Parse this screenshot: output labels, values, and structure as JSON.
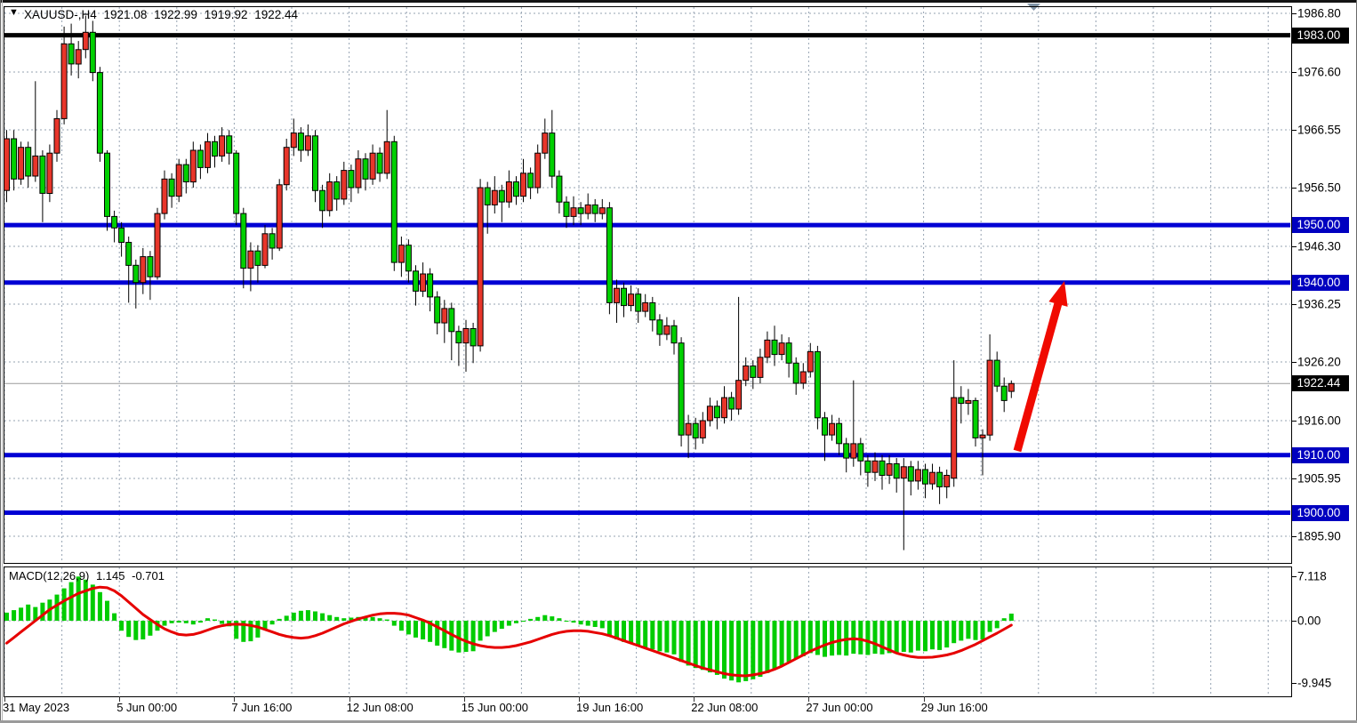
{
  "window": {
    "title": {
      "dropdown_icon": "symbol-dropdown-triangle",
      "symbol_period": "XAUUSD-,H4",
      "open": "1921.08",
      "high": "1922.99",
      "low": "1919.92",
      "close": "1922.44"
    }
  },
  "colors": {
    "background": "#ffffff",
    "grid": "#96a3b2",
    "bull_candle": "#e8352a",
    "bear_candle": "#00d000",
    "candle_outline": "#000000",
    "hline_blue": "#0000d4",
    "hline_black": "#000000",
    "badge_blue": "#0000c0",
    "badge_black": "#000000",
    "current_price_line": "#9a9a9a",
    "macd_histogram": "#00cc00",
    "macd_signal": "#e60000",
    "arrow_red": "#f00a00",
    "scroll_marker": "#8094a6"
  },
  "price_axis": {
    "ticks": [
      {
        "label": "1986.80",
        "value": 1986.8
      },
      {
        "label": "1976.60",
        "value": 1976.6
      },
      {
        "label": "1966.55",
        "value": 1966.55
      },
      {
        "label": "1956.50",
        "value": 1956.5
      },
      {
        "label": "1946.30",
        "value": 1946.3
      },
      {
        "label": "1936.25",
        "value": 1936.25
      },
      {
        "label": "1926.20",
        "value": 1926.2
      },
      {
        "label": "1916.00",
        "value": 1916.0
      },
      {
        "label": "1905.95",
        "value": 1905.95
      },
      {
        "label": "1895.90",
        "value": 1895.9
      }
    ],
    "badges": [
      {
        "label": "1983.00",
        "value": 1983.0,
        "style": "black"
      },
      {
        "label": "1950.00",
        "value": 1950.0,
        "style": "blue"
      },
      {
        "label": "1940.00",
        "value": 1940.0,
        "style": "blue"
      },
      {
        "label": "1922.44",
        "value": 1922.44,
        "style": "black"
      },
      {
        "label": "1910.00",
        "value": 1910.0,
        "style": "blue"
      },
      {
        "label": "1900.00",
        "value": 1900.0,
        "style": "blue"
      }
    ]
  },
  "time_axis": {
    "labels": [
      {
        "text": "31 May 2023",
        "grid": 0,
        "align": "left"
      },
      {
        "text": "5 Jun 00:00",
        "grid": 2
      },
      {
        "text": "7 Jun 16:00",
        "grid": 4
      },
      {
        "text": "12 Jun 08:00",
        "grid": 6
      },
      {
        "text": "15 Jun 00:00",
        "grid": 8
      },
      {
        "text": "19 Jun 16:00",
        "grid": 10
      },
      {
        "text": "22 Jun 08:00",
        "grid": 12
      },
      {
        "text": "27 Jun 00:00",
        "grid": 14
      },
      {
        "text": "29 Jun 16:00",
        "grid": 16
      }
    ]
  },
  "macd_panel": {
    "label": "MACD(12,26,9)",
    "value_main": "1.145",
    "value_signal": "-0.701",
    "scale_labels": [
      {
        "label": "7.118",
        "value": 7.118
      },
      {
        "label": "0.00",
        "value": 0
      },
      {
        "label": "-9.945",
        "value": -9.945
      }
    ]
  },
  "chart_data": {
    "type": "candlestick",
    "symbol": "XAUUSD-",
    "timeframe": "H4",
    "title": "XAUUSD-,H4 1921.08 1922.99 1919.92 1922.44",
    "bull_color_is_red": true,
    "ohlc_current": {
      "open": 1921.08,
      "high": 1922.99,
      "low": 1919.92,
      "close": 1922.44
    },
    "y_range": [
      1891.5,
      1987.9
    ],
    "horizontal_lines": [
      {
        "price": 1983.0,
        "color": "black"
      },
      {
        "price": 1950.0,
        "color": "blue"
      },
      {
        "price": 1940.0,
        "color": "blue"
      },
      {
        "price": 1910.0,
        "color": "blue"
      },
      {
        "price": 1900.0,
        "color": "blue"
      }
    ],
    "current_price_line": 1922.44,
    "annotation_arrow": {
      "from_price": 1910.2,
      "to_price": 1939.3,
      "direction": "up-right"
    },
    "candles": [
      [
        1956,
        1966.5,
        1954,
        1965
      ],
      [
        1965,
        1966.5,
        1956,
        1958
      ],
      [
        1958,
        1964.5,
        1957,
        1963.5
      ],
      [
        1963.5,
        1964.5,
        1956.5,
        1958.5
      ],
      [
        1958.5,
        1975,
        1957.5,
        1962
      ],
      [
        1962,
        1963,
        1950.5,
        1955.5
      ],
      [
        1955.5,
        1964,
        1954,
        1962.5
      ],
      [
        1962.5,
        1970,
        1961,
        1968.5
      ],
      [
        1968.5,
        1984.5,
        1967.5,
        1981.5
      ],
      [
        1981.5,
        1985,
        1976,
        1978
      ],
      [
        1978,
        1982,
        1975.5,
        1980.5
      ],
      [
        1980.5,
        1986.4,
        1979,
        1983.5
      ],
      [
        1983.5,
        1985.5,
        1975,
        1976.5
      ],
      [
        1976.5,
        1977.5,
        1961,
        1962.5
      ],
      [
        1962.5,
        1963,
        1949,
        1951.5
      ],
      [
        1951.5,
        1952.5,
        1947,
        1949.5
      ],
      [
        1949.5,
        1950.5,
        1944.5,
        1947
      ],
      [
        1947,
        1948,
        1936.5,
        1943
      ],
      [
        1943,
        1944,
        1935.5,
        1940
      ],
      [
        1940,
        1946,
        1938,
        1944.5
      ],
      [
        1944.5,
        1945.5,
        1937,
        1941
      ],
      [
        1941,
        1953,
        1940.5,
        1952
      ],
      [
        1952,
        1959.5,
        1951,
        1958
      ],
      [
        1958,
        1959,
        1953,
        1955
      ],
      [
        1955,
        1961.5,
        1954,
        1960.5
      ],
      [
        1960.5,
        1961.5,
        1955.5,
        1957.5
      ],
      [
        1957.5,
        1964.5,
        1956.5,
        1963
      ],
      [
        1963,
        1964,
        1958,
        1960
      ],
      [
        1960,
        1966,
        1959,
        1964.5
      ],
      [
        1964.5,
        1965.5,
        1960,
        1962
      ],
      [
        1962,
        1967,
        1961,
        1965.5
      ],
      [
        1965.5,
        1966.5,
        1960.5,
        1962.5
      ],
      [
        1962.5,
        1963,
        1950,
        1952
      ],
      [
        1952,
        1953,
        1939,
        1942.5
      ],
      [
        1942.5,
        1947,
        1938.5,
        1945.5
      ],
      [
        1945.5,
        1946.5,
        1940,
        1943
      ],
      [
        1943,
        1950,
        1942.5,
        1948.5
      ],
      [
        1948.5,
        1949.5,
        1944,
        1946
      ],
      [
        1946,
        1958,
        1945.5,
        1957
      ],
      [
        1957,
        1965,
        1956,
        1963.5
      ],
      [
        1963.5,
        1968.5,
        1962,
        1966
      ],
      [
        1966,
        1967,
        1961,
        1963
      ],
      [
        1963,
        1967.5,
        1962,
        1965.5
      ],
      [
        1965.5,
        1966.5,
        1954,
        1956
      ],
      [
        1956,
        1957,
        1949.5,
        1952.5
      ],
      [
        1952.5,
        1959,
        1951.5,
        1957.5
      ],
      [
        1957.5,
        1958.5,
        1952.5,
        1954.5
      ],
      [
        1954.5,
        1961,
        1953.5,
        1959.5
      ],
      [
        1959.5,
        1960.5,
        1954,
        1956.5
      ],
      [
        1956.5,
        1963,
        1955.5,
        1961.5
      ],
      [
        1961.5,
        1962.5,
        1956,
        1958
      ],
      [
        1958,
        1964,
        1957,
        1962.5
      ],
      [
        1962.5,
        1963.5,
        1957.5,
        1959
      ],
      [
        1959,
        1970,
        1958,
        1964.5
      ],
      [
        1964.5,
        1965.5,
        1942,
        1943.5
      ],
      [
        1943.5,
        1948,
        1941,
        1946.5
      ],
      [
        1946.5,
        1947.5,
        1940,
        1942
      ],
      [
        1942,
        1943,
        1936,
        1938.5
      ],
      [
        1938.5,
        1943.5,
        1937.5,
        1941.5
      ],
      [
        1941.5,
        1942.5,
        1935,
        1937.5
      ],
      [
        1937.5,
        1938.5,
        1931,
        1933
      ],
      [
        1933,
        1937,
        1929.5,
        1935.5
      ],
      [
        1935.5,
        1936.5,
        1926.5,
        1931.5
      ],
      [
        1931.5,
        1932.5,
        1925.5,
        1929.5
      ],
      [
        1929.5,
        1933.5,
        1924.5,
        1932
      ],
      [
        1932,
        1933,
        1926,
        1929
      ],
      [
        1929,
        1958,
        1928,
        1956.5
      ],
      [
        1956.5,
        1957.5,
        1948.5,
        1953.5
      ],
      [
        1953.5,
        1958.5,
        1952,
        1956
      ],
      [
        1956,
        1957,
        1950.5,
        1954
      ],
      [
        1954,
        1959.5,
        1953,
        1957.5
      ],
      [
        1957.5,
        1958.5,
        1953.5,
        1955
      ],
      [
        1955,
        1961.5,
        1954,
        1959
      ],
      [
        1959,
        1960,
        1954.5,
        1956.5
      ],
      [
        1956.5,
        1964,
        1955.5,
        1962.5
      ],
      [
        1962.5,
        1968.5,
        1961.5,
        1966
      ],
      [
        1966,
        1970,
        1956.5,
        1958.5
      ],
      [
        1958.5,
        1959.5,
        1952,
        1954
      ],
      [
        1954,
        1955,
        1949.5,
        1951.5
      ],
      [
        1951.5,
        1955,
        1950,
        1953
      ],
      [
        1953,
        1954,
        1950,
        1952
      ],
      [
        1952,
        1955.5,
        1951,
        1953.5
      ],
      [
        1953.5,
        1954.5,
        1950.5,
        1952
      ],
      [
        1952,
        1954.5,
        1951,
        1953
      ],
      [
        1953,
        1954,
        1934.5,
        1936.5
      ],
      [
        1936.5,
        1940.5,
        1933,
        1939
      ],
      [
        1939,
        1940,
        1934,
        1936
      ],
      [
        1936,
        1939.5,
        1935,
        1938
      ],
      [
        1938,
        1939,
        1933,
        1935
      ],
      [
        1935,
        1938,
        1934,
        1936.5
      ],
      [
        1936.5,
        1937.5,
        1931.5,
        1933.5
      ],
      [
        1933.5,
        1934.5,
        1929,
        1931
      ],
      [
        1931,
        1934,
        1930,
        1932.5
      ],
      [
        1932.5,
        1933.5,
        1927.5,
        1929.5
      ],
      [
        1929.5,
        1930.5,
        1911.5,
        1913.5
      ],
      [
        1913.5,
        1917,
        1909.5,
        1915.5
      ],
      [
        1915.5,
        1916.5,
        1911,
        1913
      ],
      [
        1913,
        1917.5,
        1912,
        1916
      ],
      [
        1916,
        1920,
        1915,
        1918.5
      ],
      [
        1918.5,
        1919.5,
        1914.5,
        1916.5
      ],
      [
        1916.5,
        1922,
        1915.5,
        1920
      ],
      [
        1920,
        1921,
        1916,
        1918
      ],
      [
        1918,
        1937.5,
        1917,
        1923
      ],
      [
        1923,
        1927,
        1922,
        1925.5
      ],
      [
        1925.5,
        1926.5,
        1921.5,
        1923.5
      ],
      [
        1923.5,
        1928.5,
        1922.5,
        1927
      ],
      [
        1927,
        1931.5,
        1926,
        1930
      ],
      [
        1930,
        1932.5,
        1925.5,
        1927.5
      ],
      [
        1927.5,
        1931,
        1926.5,
        1929.5
      ],
      [
        1929.5,
        1930.5,
        1923.5,
        1926
      ],
      [
        1926,
        1927,
        1920.5,
        1922.5
      ],
      [
        1922.5,
        1926,
        1921.5,
        1924.5
      ],
      [
        1924.5,
        1929.5,
        1923.5,
        1928
      ],
      [
        1928,
        1929,
        1914.5,
        1916.5
      ],
      [
        1916.5,
        1917.5,
        1909,
        1913.5
      ],
      [
        1913.5,
        1917,
        1912.5,
        1915.5
      ],
      [
        1915.5,
        1916.5,
        1910,
        1912
      ],
      [
        1912,
        1913,
        1907,
        1909.5
      ],
      [
        1909.5,
        1923,
        1908,
        1912
      ],
      [
        1912,
        1913,
        1906.5,
        1909
      ],
      [
        1909,
        1910,
        1904.5,
        1907
      ],
      [
        1907,
        1910.5,
        1905.5,
        1909
      ],
      [
        1909,
        1910,
        1904,
        1906.5
      ],
      [
        1906.5,
        1910,
        1905,
        1908.5
      ],
      [
        1908.5,
        1909.5,
        1903.5,
        1906
      ],
      [
        1906,
        1909.5,
        1893.5,
        1908
      ],
      [
        1908,
        1909,
        1903,
        1905.5
      ],
      [
        1905.5,
        1909,
        1904,
        1907.5
      ],
      [
        1907.5,
        1908.5,
        1902.5,
        1905
      ],
      [
        1905,
        1908.5,
        1904,
        1907
      ],
      [
        1907,
        1908,
        1901.5,
        1904.5
      ],
      [
        1904.5,
        1907.5,
        1902.5,
        1906.5
      ],
      [
        1906,
        1926.5,
        1904.5,
        1920
      ],
      [
        1920,
        1922,
        1915.5,
        1919
      ],
      [
        1919,
        1921.5,
        1917,
        1919.5
      ],
      [
        1919.5,
        1920,
        1911.5,
        1913
      ],
      [
        1913,
        1914.5,
        1906.5,
        1913.5
      ],
      [
        1913.5,
        1931,
        1912.5,
        1926.5
      ],
      [
        1926.5,
        1928,
        1921,
        1922
      ],
      [
        1922,
        1923.5,
        1917.5,
        1919.5
      ],
      [
        1921.08,
        1922.99,
        1919.92,
        1922.44
      ]
    ],
    "macd": {
      "parameters": "12,26,9",
      "main_value": 1.145,
      "signal_value": -0.701,
      "scale_max": 7.118,
      "scale_min": -9.945,
      "histogram": [
        1.3,
        1.7,
        2.1,
        2.6,
        2.2,
        2.9,
        3.4,
        4.2,
        5.2,
        6.2,
        7.1,
        6.6,
        5.8,
        4.6,
        3.2,
        1.2,
        -1.6,
        -2.6,
        -3.1,
        -3.0,
        -2.4,
        -1.6,
        -0.8,
        -0.4,
        -0.3,
        -0.4,
        -0.6,
        -0.3,
        0.4,
        0.2,
        -0.5,
        -0.9,
        -2.9,
        -3.4,
        -3.3,
        -2.7,
        -1.3,
        -0.6,
        0.3,
        0.8,
        1.3,
        1.6,
        1.7,
        1.5,
        1.2,
        0.9,
        0.6,
        0.4,
        0.5,
        0.6,
        0.7,
        0.6,
        0.4,
        0.2,
        -0.8,
        -1.6,
        -2.2,
        -2.7,
        -3.0,
        -3.4,
        -4.0,
        -4.4,
        -4.8,
        -5.1,
        -5.0,
        -4.9,
        -3.2,
        -2.5,
        -1.8,
        -1.3,
        -0.8,
        -0.4,
        0.0,
        0.3,
        0.6,
        0.9,
        0.7,
        0.4,
        0.0,
        -0.3,
        -0.6,
        -0.8,
        -1.0,
        -1.2,
        -2.4,
        -3.0,
        -3.4,
        -3.7,
        -4.1,
        -4.3,
        -4.6,
        -4.9,
        -5.1,
        -5.4,
        -6.6,
        -7.2,
        -7.6,
        -7.9,
        -8.3,
        -8.7,
        -9.3,
        -9.6,
        -9.9,
        -9.7,
        -9.4,
        -9.0,
        -8.4,
        -7.8,
        -7.2,
        -6.6,
        -6.1,
        -5.7,
        -5.2,
        -5.5,
        -5.8,
        -5.6,
        -5.5,
        -5.6,
        -5.3,
        -5.4,
        -5.5,
        -5.3,
        -5.4,
        -5.2,
        -5.3,
        -5.0,
        -5.1,
        -4.8,
        -4.9,
        -4.6,
        -4.7,
        -4.3,
        -3.6,
        -3.2,
        -2.9,
        -3.1,
        -3.0,
        -1.8,
        -1.2,
        0.4,
        1.145
      ],
      "signal_line": [
        -3.6,
        -2.7,
        -1.8,
        -0.9,
        0.0,
        0.9,
        1.8,
        2.5,
        3.2,
        3.8,
        4.4,
        4.8,
        5.2,
        5.4,
        5.3,
        4.8,
        4.0,
        3.0,
        2.0,
        1.0,
        0.2,
        -0.6,
        -1.3,
        -1.8,
        -2.2,
        -2.3,
        -2.2,
        -1.9,
        -1.5,
        -1.1,
        -0.8,
        -0.6,
        -0.55,
        -0.6,
        -0.75,
        -1.0,
        -1.4,
        -1.8,
        -2.2,
        -2.5,
        -2.7,
        -2.8,
        -2.7,
        -2.4,
        -2.0,
        -1.5,
        -1.0,
        -0.5,
        -0.1,
        0.3,
        0.6,
        0.9,
        1.1,
        1.2,
        1.2,
        1.1,
        0.9,
        0.5,
        0.1,
        -0.4,
        -1.0,
        -1.6,
        -2.2,
        -2.8,
        -3.3,
        -3.7,
        -4.0,
        -4.2,
        -4.3,
        -4.3,
        -4.2,
        -4.0,
        -3.7,
        -3.4,
        -3.0,
        -2.6,
        -2.2,
        -1.9,
        -1.7,
        -1.6,
        -1.6,
        -1.7,
        -1.9,
        -2.1,
        -2.4,
        -2.8,
        -3.2,
        -3.6,
        -4.0,
        -4.4,
        -4.8,
        -5.2,
        -5.6,
        -6.0,
        -6.4,
        -6.8,
        -7.2,
        -7.6,
        -7.9,
        -8.2,
        -8.5,
        -8.7,
        -8.8,
        -8.85,
        -8.7,
        -8.5,
        -8.2,
        -7.8,
        -7.3,
        -6.7,
        -6.1,
        -5.5,
        -4.9,
        -4.4,
        -3.9,
        -3.5,
        -3.2,
        -3.0,
        -2.9,
        -3.0,
        -3.3,
        -3.7,
        -4.2,
        -4.7,
        -5.2,
        -5.5,
        -5.75,
        -5.9,
        -5.9,
        -5.85,
        -5.7,
        -5.5,
        -5.2,
        -4.8,
        -4.3,
        -3.8,
        -3.2,
        -2.6,
        -2.0,
        -1.35,
        -0.701
      ]
    }
  }
}
